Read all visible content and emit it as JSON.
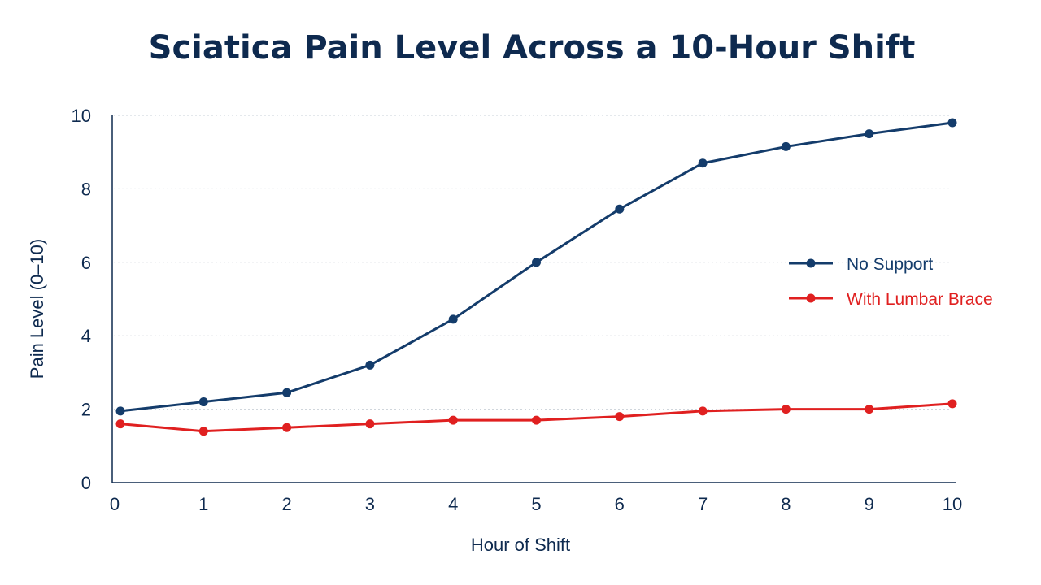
{
  "chart_data": {
    "type": "line",
    "title": "Sciatica Pain Level Across a 10-Hour Shift",
    "xlabel": "Hour of Shift",
    "ylabel": "Pain Level (0–10)",
    "x": [
      0,
      1,
      2,
      3,
      4,
      5,
      6,
      7,
      8,
      9,
      10
    ],
    "x_tick_labels": [
      "0",
      "1",
      "2",
      "3",
      "4",
      "5",
      "6",
      "7",
      "8",
      "9",
      "10"
    ],
    "y_tick_labels": [
      "0",
      "2",
      "4",
      "6",
      "8",
      "10"
    ],
    "xlim": [
      0,
      10
    ],
    "ylim": [
      0,
      10
    ],
    "grid": "horizontal dotted",
    "legend_position": "right",
    "series": [
      {
        "name": "No Support",
        "color": "#143c6b",
        "values": [
          1.95,
          2.2,
          2.45,
          3.2,
          4.45,
          6.0,
          7.45,
          8.7,
          9.15,
          9.5,
          9.8
        ]
      },
      {
        "name": "With Lumbar Brace",
        "color": "#e02020",
        "values": [
          1.6,
          1.4,
          1.5,
          1.6,
          1.7,
          1.7,
          1.8,
          1.95,
          2.0,
          2.0,
          2.15
        ]
      }
    ]
  }
}
